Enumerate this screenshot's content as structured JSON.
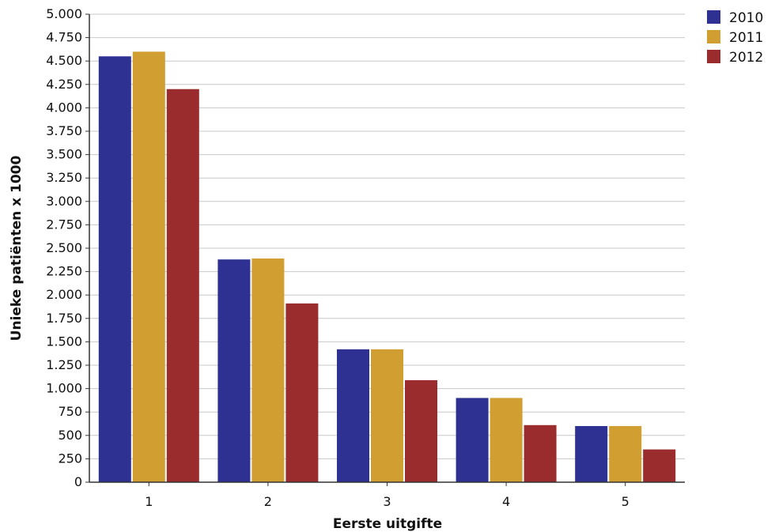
{
  "chart_data": {
    "type": "bar",
    "title": "",
    "xlabel": "Eerste uitgifte",
    "ylabel": "Unieke patiënten x 1000",
    "categories": [
      "1",
      "2",
      "3",
      "4",
      "5"
    ],
    "series": [
      {
        "name": "2010",
        "color": "#2e3191",
        "values": [
          4550,
          2380,
          1420,
          900,
          600
        ]
      },
      {
        "name": "2011",
        "color": "#d19e31",
        "values": [
          4600,
          2390,
          1420,
          900,
          600
        ]
      },
      {
        "name": "2012",
        "color": "#9a2c2e",
        "values": [
          4200,
          1910,
          1090,
          610,
          350
        ]
      }
    ],
    "ylim": [
      0,
      5000
    ],
    "yticks": [
      0,
      250,
      500,
      750,
      1000,
      1250,
      1500,
      1750,
      2000,
      2250,
      2500,
      2750,
      3000,
      3250,
      3500,
      3750,
      4000,
      4250,
      4500,
      4750,
      5000
    ],
    "ytick_labels": [
      "0",
      "250",
      "500",
      "750",
      "1.000",
      "1.250",
      "1.500",
      "1.750",
      "2.000",
      "2.250",
      "2.500",
      "2.750",
      "3.000",
      "3.250",
      "3.500",
      "3.750",
      "4.000",
      "4.250",
      "4.500",
      "4.750",
      "5.000"
    ],
    "grid": true,
    "legend_position": "top-right"
  }
}
